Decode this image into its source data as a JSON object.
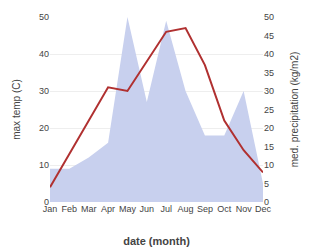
{
  "chart_data": {
    "type": "line",
    "categories": [
      "Jan",
      "Feb",
      "Mar",
      "Apr",
      "May",
      "Jun",
      "Jul",
      "Aug",
      "Sep",
      "Oct",
      "Nov",
      "Dec"
    ],
    "series": [
      {
        "type": "area",
        "color": "#c8d0ee",
        "axis": "y2",
        "values": [
          9,
          9,
          12,
          16,
          50,
          27,
          49,
          30,
          18,
          18,
          30,
          5
        ]
      },
      {
        "type": "line",
        "color": "#b03030",
        "values": [
          4,
          13,
          22,
          31,
          30,
          38,
          46,
          47,
          37,
          22,
          14,
          8
        ]
      }
    ],
    "xlabel": "date (month)",
    "ylabel": "max temp (C)",
    "y2label": "med. precipitation (kg/m2)",
    "ylim": [
      0,
      50
    ],
    "yticks": [
      0,
      10,
      20,
      30,
      40,
      50
    ],
    "y2lim": [
      0,
      50
    ],
    "y2ticks": [
      0,
      5,
      10,
      15,
      20,
      25,
      30,
      35,
      40,
      45,
      50
    ],
    "grid": true
  }
}
